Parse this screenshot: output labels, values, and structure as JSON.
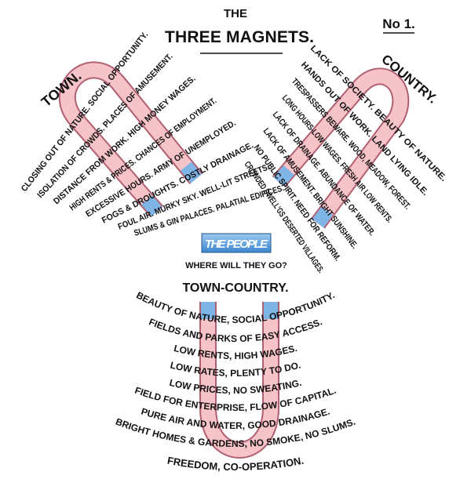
{
  "header": {
    "the": "THE",
    "title": "THREE MAGNETS.",
    "number": "No 1."
  },
  "town": {
    "label": "TOWN.",
    "lines": [
      "CLOSING OUT OF NATURE. SOCIAL OPPORTUNITY.",
      "ISOLATION OF CROWDS. PLACES OF AMUSEMENT.",
      "DISTANCE FROM WORK. HIGH MONEY WAGES.",
      "HIGH RENTS & PRICES. CHANCES OF EMPLOYMENT.",
      "EXCESSIVE HOURS. ARMY OF UNEMPLOYED.",
      "FOGS & DROUGHTS. COSTLY DRAINAGE.",
      "FOUL AIR. MURKY SKY. WELL-LIT STREETS.",
      "SLUMS & GIN PALACES. PALATIAL EDIFICES."
    ]
  },
  "country": {
    "label": "COUNTRY.",
    "lines": [
      "LACK OF SOCIETY. BEAUTY OF NATURE.",
      "HANDS OUT OF WORK. LAND LYING IDLE.",
      "TRESPASSERS BEWARE. WOOD, MEADOW, FOREST.",
      "LONG HOURS-LOW WAGES. FRESH AIR LOW RENTS.",
      "LACK OF DRAINAGE. ABUNDANCE OF WATER.",
      "LACK OF AMUSEMENT. BRIGHT SUNSHINE.",
      "NO PUBLIC SPIRIT. NEED FOR REFORM.",
      "CROWDED DWELL'GS DESERTED VILLAGES."
    ]
  },
  "people": {
    "title": "THE PEOPLE",
    "question": "WHERE WILL THEY GO?"
  },
  "town_country": {
    "label": "TOWN-COUNTRY.",
    "lines": [
      "BEAUTY OF NATURE, SOCIAL OPPORTUNITY.",
      "FIELDS AND PARKS OF EASY ACCESS.",
      "LOW RENTS, HIGH WAGES.",
      "LOW RATES, PLENTY TO DO.",
      "LOW PRICES, NO SWEATING.",
      "FIELD FOR ENTERPRISE, FLOW OF CAPITAL.",
      "PURE AIR AND WATER, GOOD DRAINAGE.",
      "BRIGHT HOMES & GARDENS, NO SMOKE, NO SLUMS.",
      "FREEDOM, CO-OPERATION."
    ]
  }
}
